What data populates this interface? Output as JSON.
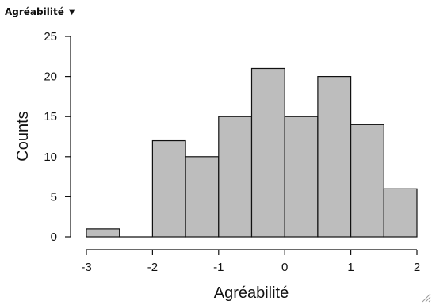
{
  "panel": {
    "title": "Agréabilité",
    "dropdown_icon": "triangle-down-icon"
  },
  "chart_data": {
    "type": "bar",
    "subtype": "histogram",
    "xlabel": "Agréabilité",
    "ylabel": "Counts",
    "xlim": [
      -3,
      2
    ],
    "ylim": [
      0,
      25
    ],
    "x_ticks": [
      -3,
      -2,
      -1,
      0,
      1,
      2
    ],
    "y_ticks": [
      0,
      5,
      10,
      15,
      20,
      25
    ],
    "bins": [
      {
        "x0": -3.0,
        "x1": -2.5,
        "count": 1
      },
      {
        "x0": -2.5,
        "x1": -2.0,
        "count": 0
      },
      {
        "x0": -2.0,
        "x1": -1.5,
        "count": 12
      },
      {
        "x0": -1.5,
        "x1": -1.0,
        "count": 10
      },
      {
        "x0": -1.0,
        "x1": -0.5,
        "count": 15
      },
      {
        "x0": -0.5,
        "x1": 0.0,
        "count": 21
      },
      {
        "x0": 0.0,
        "x1": 0.5,
        "count": 15
      },
      {
        "x0": 0.5,
        "x1": 1.0,
        "count": 20
      },
      {
        "x0": 1.0,
        "x1": 1.5,
        "count": 14
      },
      {
        "x0": 1.5,
        "x1": 2.0,
        "count": 6
      }
    ],
    "colors": {
      "bar_fill": "#bdbdbd",
      "bar_stroke": "#111111",
      "axis": "#111111"
    },
    "grid": false,
    "legend": "none"
  }
}
